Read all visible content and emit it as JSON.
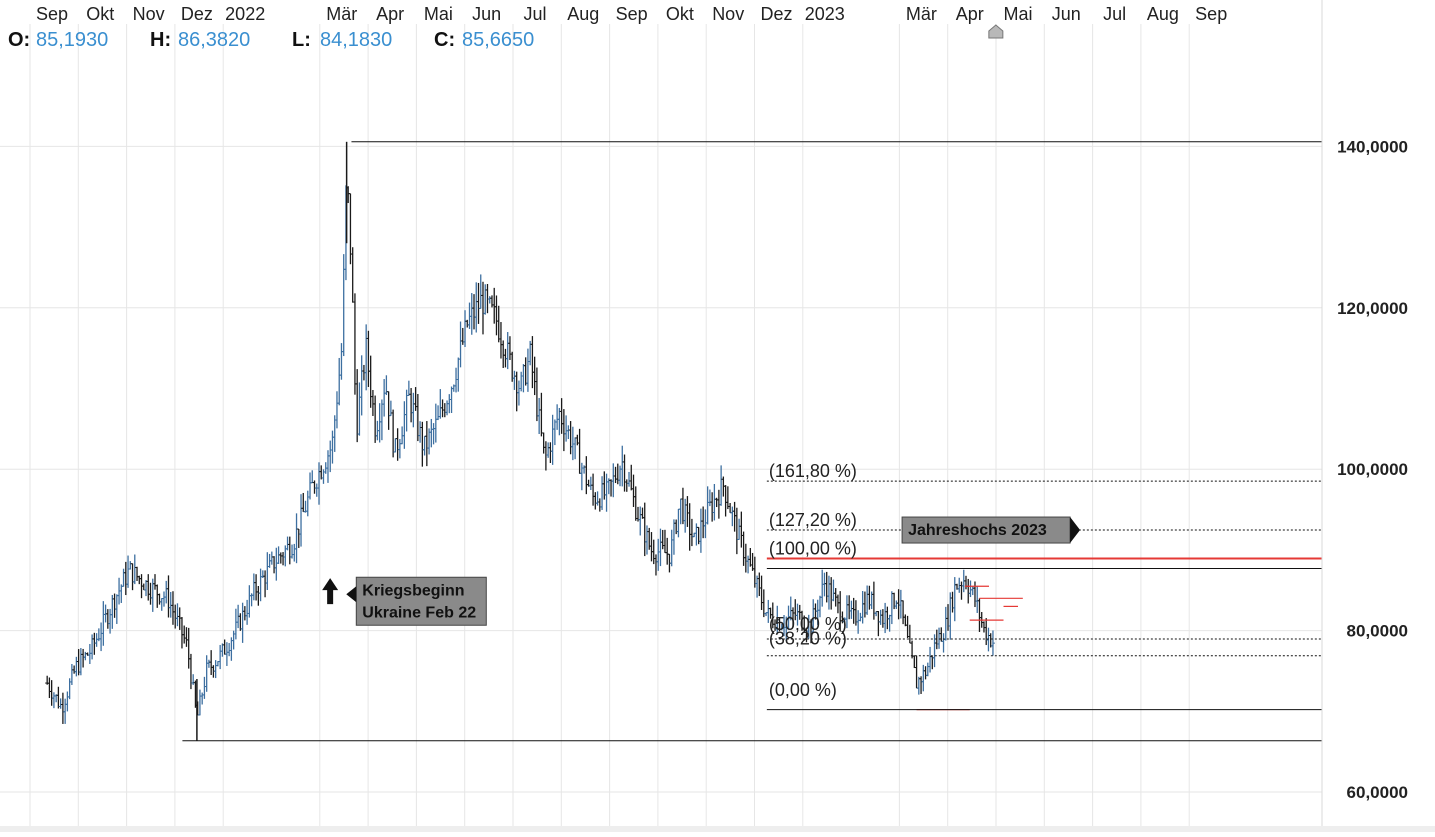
{
  "ohlc_header": [
    {
      "key": "O:",
      "value": "85,1930"
    },
    {
      "key": "H:",
      "value": "86,3820"
    },
    {
      "key": "L:",
      "value": "84,1830"
    },
    {
      "key": "C:",
      "value": "85,6650"
    }
  ],
  "colors": {
    "bar": "#1a1a1a",
    "bar_up": "#3d6fa0",
    "grid": "#e6e6e6",
    "header_value": "#3a8fd0",
    "current_marker": "#e53935",
    "label_bg": "#111111",
    "annotation_bg": "#8a8a8a"
  },
  "chart_data": {
    "type": "ohlc",
    "y_range": [
      56.0,
      158.0
    ],
    "y_tick_labels": [
      {
        "value": 60,
        "label": "60,0000"
      },
      {
        "value": 80,
        "label": "80,0000"
      },
      {
        "value": 100,
        "label": "100,0000"
      },
      {
        "value": 120,
        "label": "120,0000"
      },
      {
        "value": 140,
        "label": "140,0000"
      }
    ],
    "x_tick_labels": [
      {
        "t": 0,
        "label": "Sep"
      },
      {
        "t": 1,
        "label": "Okt"
      },
      {
        "t": 2,
        "label": "Nov"
      },
      {
        "t": 3,
        "label": "Dez"
      },
      {
        "t": 4,
        "label": "2022"
      },
      {
        "t": 6,
        "label": "Mär"
      },
      {
        "t": 7,
        "label": "Apr"
      },
      {
        "t": 8,
        "label": "Mai"
      },
      {
        "t": 9,
        "label": "Jun"
      },
      {
        "t": 10,
        "label": "Jul"
      },
      {
        "t": 11,
        "label": "Aug"
      },
      {
        "t": 12,
        "label": "Sep"
      },
      {
        "t": 13,
        "label": "Okt"
      },
      {
        "t": 14,
        "label": "Nov"
      },
      {
        "t": 15,
        "label": "Dez"
      },
      {
        "t": 16,
        "label": "2023"
      },
      {
        "t": 18,
        "label": "Mär"
      },
      {
        "t": 19,
        "label": "Apr"
      },
      {
        "t": 20,
        "label": "Mai"
      },
      {
        "t": 21,
        "label": "Jun"
      },
      {
        "t": 22,
        "label": "Jul"
      },
      {
        "t": 23,
        "label": "Aug"
      },
      {
        "t": 24,
        "label": "Sep"
      }
    ],
    "price_path": [
      [
        -0.1,
        73.5
      ],
      [
        0.2,
        70.5
      ],
      [
        0.5,
        75.5
      ],
      [
        0.8,
        77.5
      ],
      [
        1.0,
        80.0
      ],
      [
        1.3,
        84.0
      ],
      [
        1.6,
        87.5
      ],
      [
        2.0,
        85.5
      ],
      [
        2.4,
        84.0
      ],
      [
        2.8,
        78.0
      ],
      [
        3.0,
        69.0
      ],
      [
        3.2,
        75.0
      ],
      [
        3.5,
        77.0
      ],
      [
        3.8,
        80.0
      ],
      [
        4.2,
        85.0
      ],
      [
        4.6,
        88.5
      ],
      [
        5.0,
        91.0
      ],
      [
        5.4,
        98.0
      ],
      [
        5.8,
        103.0
      ],
      [
        6.0,
        115.0
      ],
      [
        6.1,
        137.0
      ],
      [
        6.2,
        125.0
      ],
      [
        6.3,
        105.0
      ],
      [
        6.5,
        115.0
      ],
      [
        6.7,
        105.0
      ],
      [
        6.9,
        111.0
      ],
      [
        7.1,
        102.0
      ],
      [
        7.4,
        109.0
      ],
      [
        7.7,
        102.5
      ],
      [
        8.0,
        106.0
      ],
      [
        8.3,
        111.0
      ],
      [
        8.6,
        118.0
      ],
      [
        8.9,
        121.0
      ],
      [
        9.2,
        118.5
      ],
      [
        9.5,
        113.0
      ],
      [
        9.7,
        110.0
      ],
      [
        9.9,
        114.0
      ],
      [
        10.2,
        101.0
      ],
      [
        10.5,
        107.0
      ],
      [
        10.8,
        103.0
      ],
      [
        11.2,
        96.5
      ],
      [
        11.5,
        97.0
      ],
      [
        11.8,
        101.0
      ],
      [
        12.1,
        95.0
      ],
      [
        12.4,
        90.0
      ],
      [
        12.8,
        89.5
      ],
      [
        13.0,
        96.0
      ],
      [
        13.3,
        91.0
      ],
      [
        13.6,
        95.0
      ],
      [
        13.9,
        98.0
      ],
      [
        14.2,
        92.0
      ],
      [
        14.5,
        87.0
      ],
      [
        14.8,
        82.0
      ],
      [
        15.1,
        81.0
      ],
      [
        15.4,
        82.0
      ],
      [
        15.7,
        80.5
      ],
      [
        16.0,
        86.0
      ],
      [
        16.3,
        82.5
      ],
      [
        16.6,
        81.5
      ],
      [
        16.9,
        84.0
      ],
      [
        17.2,
        81.5
      ],
      [
        17.5,
        84.5
      ],
      [
        17.7,
        79.0
      ],
      [
        17.9,
        73.5
      ],
      [
        18.1,
        75.0
      ],
      [
        18.3,
        78.5
      ],
      [
        18.5,
        80.5
      ],
      [
        18.7,
        85.5
      ],
      [
        18.9,
        86.5
      ],
      [
        19.1,
        84.0
      ],
      [
        19.3,
        80.0
      ],
      [
        19.5,
        78.5
      ]
    ],
    "reference_lines": [
      {
        "value": 140.5685,
        "label": "140,5685",
        "x_start": 6.2,
        "x_end": 24.2,
        "style": "solid",
        "color": "#111111"
      },
      {
        "value": 98.5146,
        "label": "98,5146",
        "x_start": 14.8,
        "x_end": 24.2,
        "style": "dotted",
        "color": "#111111"
      },
      {
        "value": 92.4614,
        "label": "92,4614",
        "x_start": 14.8,
        "x_end": 24.2,
        "style": "dotted",
        "color": "#111111"
      },
      {
        "value": 88.9356,
        "label": "88,9356",
        "x_start": 14.8,
        "x_end": 24.2,
        "style": "solid",
        "color": "#e53935"
      },
      {
        "value": 87.7028,
        "label": "87,7028",
        "x_start": 14.8,
        "x_end": 24.2,
        "style": "solid",
        "color": "#111111"
      },
      {
        "value": 78.9553,
        "label": "78,9553",
        "x_start": 14.8,
        "x_end": 24.2,
        "style": "dotted",
        "color": "#111111"
      },
      {
        "value": 76.891,
        "label": "76,8910",
        "x_start": 14.8,
        "x_end": 24.2,
        "style": "dotted",
        "color": "#111111"
      },
      {
        "value": 70.2079,
        "label": "70,2079",
        "x_start": 14.8,
        "x_end": 24.2,
        "style": "solid",
        "color": "#111111"
      },
      {
        "value": 66.3509,
        "label": "66,3509",
        "x_start": 2.7,
        "x_end": 24.2,
        "style": "solid",
        "color": "#111111"
      }
    ],
    "fib_labels": [
      {
        "label": "(161,80 %)",
        "value": 98.5146,
        "t": 14.8
      },
      {
        "label": "(127,20 %)",
        "value": 92.4614,
        "t": 14.8
      },
      {
        "label": "(100,00 %)",
        "value": 88.9356,
        "t": 14.8
      },
      {
        "label": "(50,00 %)",
        "value": 79.6,
        "t": 14.8
      },
      {
        "label": "(38,20 %)",
        "value": 77.8,
        "t": 14.8
      },
      {
        "label": "(0,00 %)",
        "value": 71.4,
        "t": 14.8
      }
    ],
    "red_level_marks": [
      {
        "value": 84.0,
        "x_start": 19.2,
        "x_end": 20.1
      },
      {
        "value": 83.0,
        "x_start": 19.7,
        "x_end": 20.0
      },
      {
        "value": 81.3,
        "x_start": 19.0,
        "x_end": 19.7
      },
      {
        "value": 85.5,
        "x_start": 18.9,
        "x_end": 19.4
      },
      {
        "value": 70.2,
        "x_start": 17.9,
        "x_end": 19.0
      }
    ],
    "annotations": [
      {
        "name": "kriegsbeginn",
        "lines": [
          "Kriegsbeginn",
          "Ukraine Feb 22"
        ],
        "t": 6.3,
        "value": 85.0,
        "arrow": "up-arrow-icon",
        "arrow_t": 5.8,
        "arrow_value": 86.5
      },
      {
        "name": "jahreshochs",
        "lines": [
          "Jahreshochs 2023"
        ],
        "t": 17.6,
        "value": 92.4614
      }
    ]
  }
}
